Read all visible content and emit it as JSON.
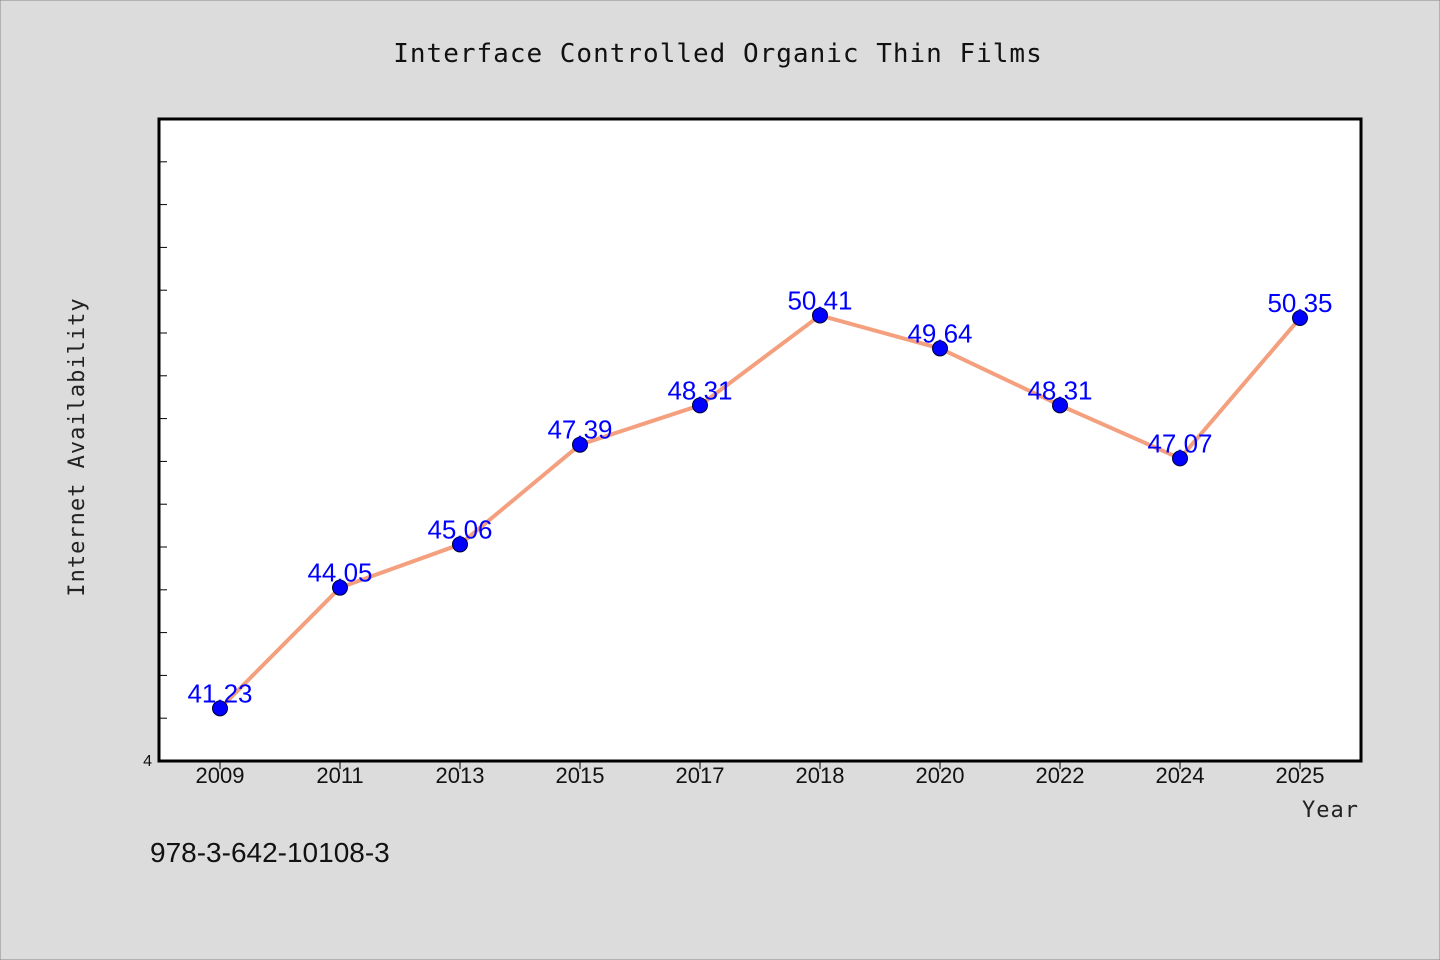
{
  "chart_data": {
    "type": "line",
    "title": "Interface Controlled Organic Thin Films",
    "xlabel": "Year",
    "ylabel": "Internet Availability",
    "categories": [
      "2009",
      "2011",
      "2013",
      "2015",
      "2017",
      "2018",
      "2020",
      "2022",
      "2024",
      "2025"
    ],
    "series": [
      {
        "values": [
          41.23,
          44.05,
          45.06,
          47.39,
          48.31,
          50.41,
          49.64,
          48.31,
          47.07,
          50.35
        ],
        "labels": [
          "41.23",
          "44.05",
          "45.06",
          "47.39",
          "48.31",
          "50.41",
          "49.64",
          "48.31",
          "47.07",
          "50.35"
        ],
        "line_color": "#f4a07e",
        "marker_color": "#0000ff"
      }
    ],
    "y_visible_tick_label": "4",
    "ylim": [
      40.0,
      55.0
    ],
    "grid": false,
    "legend": "none"
  },
  "footer": {
    "isbn": "978-3-642-10108-3"
  }
}
